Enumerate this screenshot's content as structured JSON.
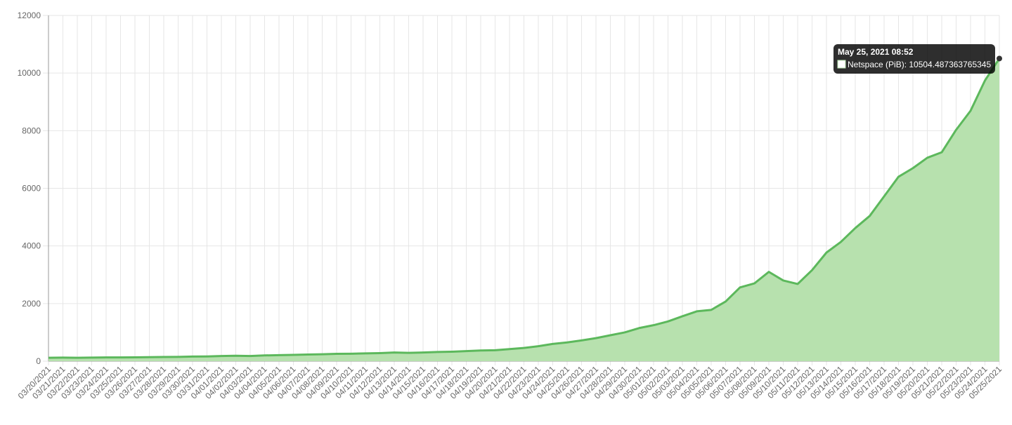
{
  "chart_data": {
    "type": "area",
    "categories": [
      "03/20/2021",
      "03/21/2021",
      "03/22/2021",
      "03/23/2021",
      "03/24/2021",
      "03/25/2021",
      "03/26/2021",
      "03/27/2021",
      "03/28/2021",
      "03/29/2021",
      "03/30/2021",
      "03/31/2021",
      "04/01/2021",
      "04/02/2021",
      "04/03/2021",
      "04/04/2021",
      "04/05/2021",
      "04/06/2021",
      "04/07/2021",
      "04/08/2021",
      "04/09/2021",
      "04/10/2021",
      "04/11/2021",
      "04/12/2021",
      "04/13/2021",
      "04/14/2021",
      "04/15/2021",
      "04/16/2021",
      "04/17/2021",
      "04/18/2021",
      "04/19/2021",
      "04/20/2021",
      "04/21/2021",
      "04/22/2021",
      "04/23/2021",
      "04/24/2021",
      "04/25/2021",
      "04/26/2021",
      "04/27/2021",
      "04/28/2021",
      "04/29/2021",
      "04/30/2021",
      "05/01/2021",
      "05/02/2021",
      "05/03/2021",
      "05/04/2021",
      "05/05/2021",
      "05/06/2021",
      "05/07/2021",
      "05/08/2021",
      "05/09/2021",
      "05/10/2021",
      "05/11/2021",
      "05/12/2021",
      "05/13/2021",
      "05/14/2021",
      "05/15/2021",
      "05/16/2021",
      "05/17/2021",
      "05/18/2021",
      "05/19/2021",
      "05/20/2021",
      "05/21/2021",
      "05/22/2021",
      "05/23/2021",
      "05/24/2021",
      "05/25/2021"
    ],
    "series": [
      {
        "color": "#5cb85c",
        "fill": "#b7e1ae",
        "values": [
          120,
          125,
          120,
          125,
          130,
          130,
          135,
          140,
          145,
          150,
          160,
          165,
          180,
          190,
          180,
          200,
          210,
          220,
          230,
          240,
          255,
          260,
          270,
          280,
          300,
          290,
          300,
          320,
          330,
          350,
          370,
          380,
          420,
          460,
          520,
          600,
          650,
          720,
          800,
          900,
          1000,
          1150,
          1250,
          1380,
          1560,
          1730,
          1780,
          2070,
          2560,
          2700,
          3100,
          2800,
          2680,
          3160,
          3770,
          4140,
          4620,
          5040,
          5720,
          6400,
          6700,
          7060,
          7250,
          8030,
          8690,
          9740,
          10504.487363765345
        ]
      }
    ],
    "ylim": [
      0,
      12000
    ],
    "yticks": [
      0,
      2000,
      4000,
      6000,
      8000,
      10000,
      12000
    ],
    "grid": true,
    "tooltip": {
      "title": "May 25, 2021 08:52",
      "body": "Netspace (PiB): 10504.487363765345"
    }
  }
}
